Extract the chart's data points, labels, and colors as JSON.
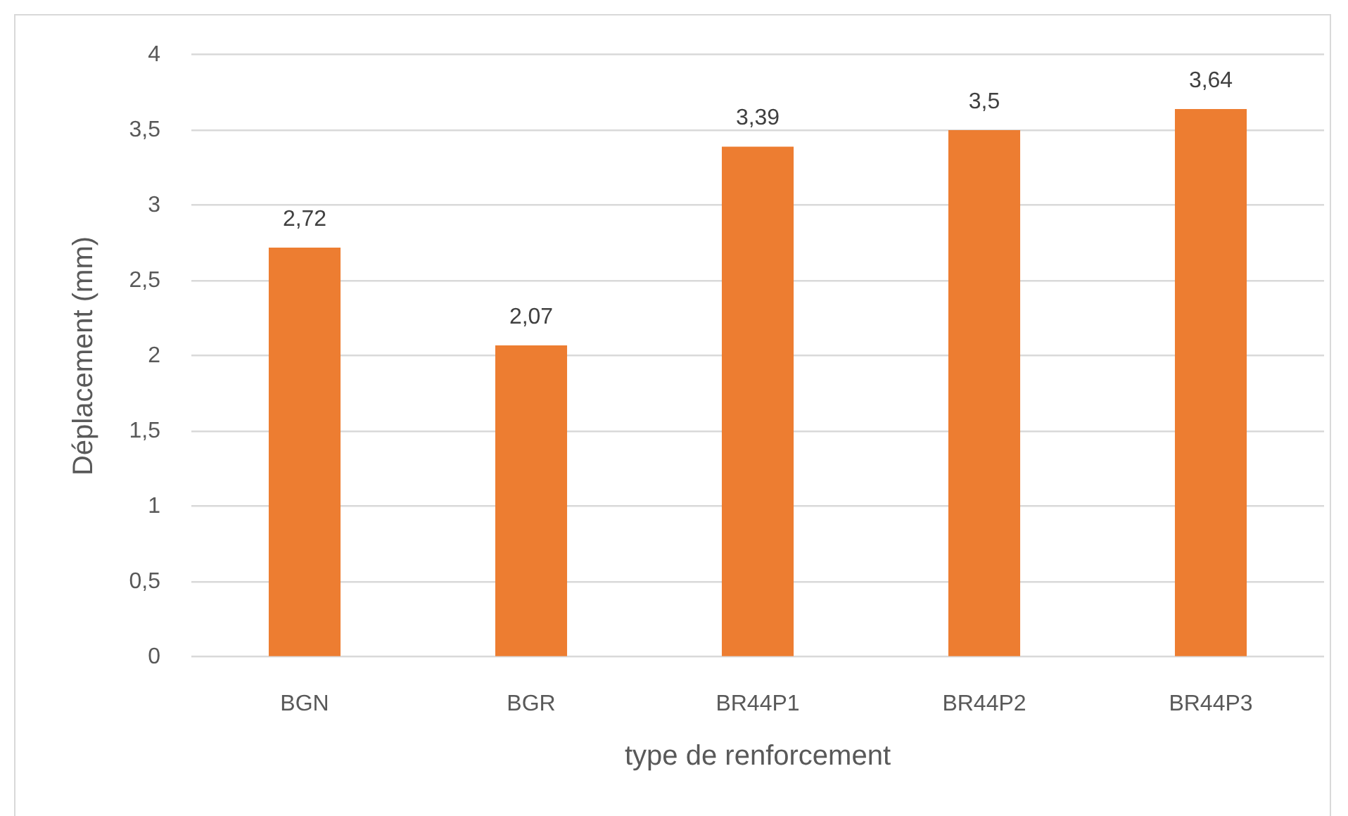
{
  "chart_data": {
    "type": "bar",
    "xlabel": "type de renforcement",
    "ylabel": "Déplacement (mm)",
    "categories": [
      "BGN",
      "BGR",
      "BR44P1",
      "BR44P2",
      "BR44P3"
    ],
    "values": [
      2.72,
      2.07,
      3.39,
      3.5,
      3.64
    ],
    "value_labels": [
      "2,72",
      "2,07",
      "3,39",
      "3,5",
      "3,64"
    ],
    "color": "#ed7d31",
    "ylim": [
      0,
      4
    ],
    "yticks": [
      0,
      {
        "value": 0.5,
        "label": "0,5"
      },
      1,
      {
        "value": 1.5,
        "label": "1,5"
      },
      2,
      {
        "value": 2.5,
        "label": "2,5"
      },
      3,
      {
        "value": 3.5,
        "label": "3,5"
      },
      4
    ],
    "grid": "y"
  }
}
